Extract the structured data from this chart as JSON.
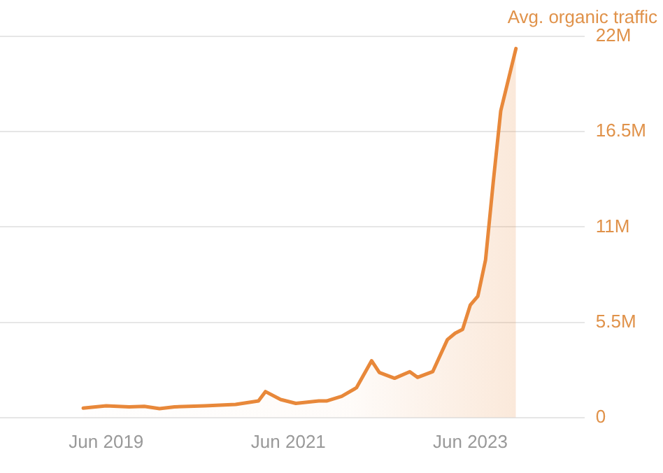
{
  "chart_data": {
    "type": "area",
    "ylabel": "Avg. organic traffic",
    "x": [
      "2019-03",
      "2019-06",
      "2019-09",
      "2019-11",
      "2020-01",
      "2020-03",
      "2020-07",
      "2020-11",
      "2021-02",
      "2021-03",
      "2021-05",
      "2021-07",
      "2021-10",
      "2021-11",
      "2022-01",
      "2022-03",
      "2022-05",
      "2022-06",
      "2022-08",
      "2022-10",
      "2022-11",
      "2023-01",
      "2023-03",
      "2023-04",
      "2023-05",
      "2023-06",
      "2023-07",
      "2023-08",
      "2023-09",
      "2023-10",
      "2023-12"
    ],
    "series": [
      {
        "color": "#e8883a",
        "values": [
          550000,
          680000,
          620000,
          650000,
          520000,
          620000,
          680000,
          760000,
          960000,
          1500000,
          1040000,
          820000,
          960000,
          960000,
          1230000,
          1720000,
          3280000,
          2600000,
          2270000,
          2650000,
          2320000,
          2650000,
          4500000,
          4870000,
          5090000,
          6500000,
          7000000,
          9100000,
          13600000,
          17700000,
          21300000
        ]
      }
    ],
    "xlim": [
      "2018-04",
      "2024-09"
    ],
    "xticks": [
      {
        "value": "2019-06",
        "label": "Jun 2019"
      },
      {
        "value": "2021-06",
        "label": "Jun 2021"
      },
      {
        "value": "2023-06",
        "label": "Jun 2023"
      }
    ],
    "ylim": [
      0,
      22000000
    ],
    "yticks": [
      {
        "value": 0,
        "label": "0"
      },
      {
        "value": 5500000,
        "label": "5.5M"
      },
      {
        "value": 11000000,
        "label": "11M"
      },
      {
        "value": 16500000,
        "label": "16.5M"
      },
      {
        "value": 22000000,
        "label": "22M"
      }
    ],
    "grid": "y",
    "legend": false,
    "marker": "none",
    "line_style": "solid"
  }
}
